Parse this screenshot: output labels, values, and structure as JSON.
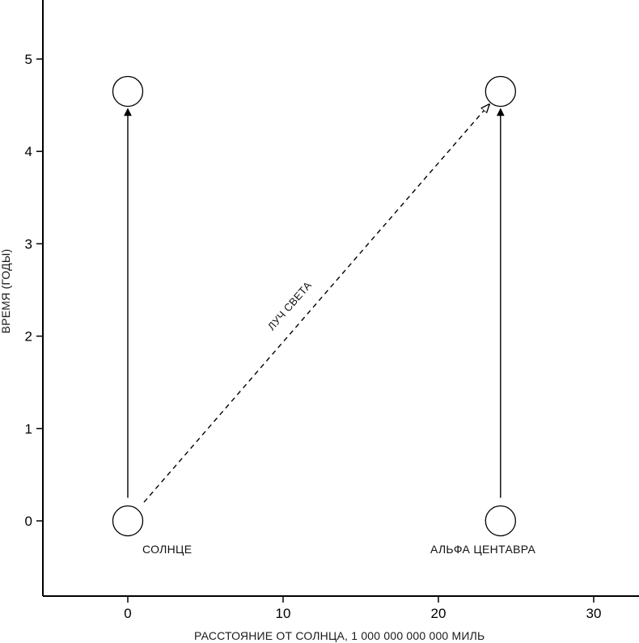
{
  "chart_data": {
    "type": "spacetime-diagram",
    "xlabel": "РАССТОЯНИЕ ОТ СОЛНЦА, 1 000 000 000 000 МИЛЬ",
    "ylabel": "ВРЕМЯ (ГОДЫ)",
    "xlim": [
      -5.5,
      33
    ],
    "ylim": [
      -0.8,
      5.7
    ],
    "x_ticks": [
      0,
      10,
      20,
      30
    ],
    "y_ticks": [
      0,
      1,
      2,
      3,
      4,
      5
    ],
    "grid": false,
    "bodies": [
      {
        "label": "СОЛНЦЕ",
        "x": 0,
        "t_start": 0,
        "t_end": 4.65
      },
      {
        "label": "АЛЬФА ЦЕНТАВРА",
        "x": 24,
        "t_start": 0,
        "t_end": 4.65
      }
    ],
    "light_ray": {
      "label": "ЛУЧ СВЕТА",
      "from": [
        0,
        0
      ],
      "to": [
        24,
        4.65
      ]
    }
  }
}
